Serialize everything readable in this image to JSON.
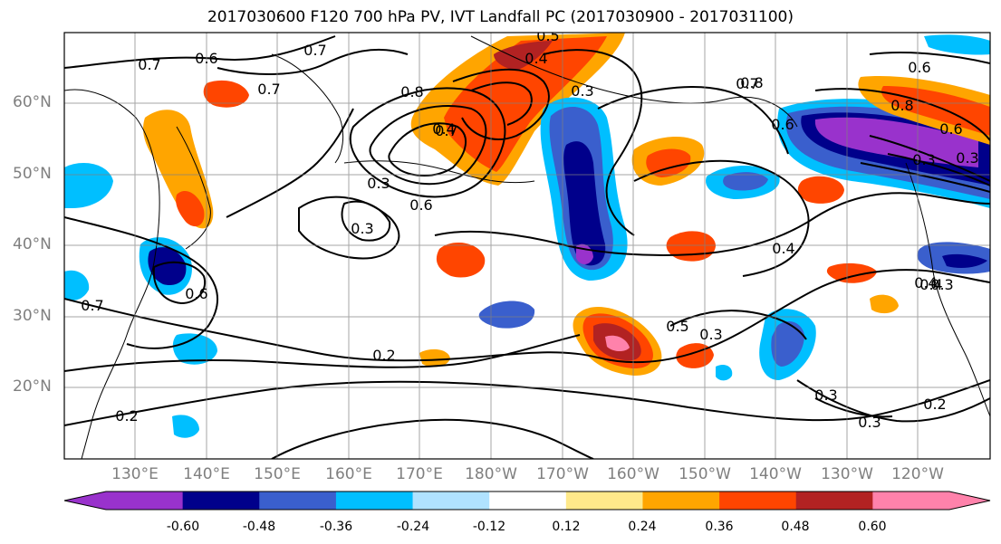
{
  "title": "2017030600 F120 700 hPa PV, IVT Landfall PC (2017030900 - 2017031100)",
  "latitude_labels": [
    "60°N",
    "50°N",
    "40°N",
    "30°N",
    "20°N"
  ],
  "longitude_labels": [
    "130°E",
    "140°E",
    "150°E",
    "160°E",
    "170°E",
    "180°W",
    "170°W",
    "160°W",
    "150°W",
    "140°W",
    "130°W",
    "120°W"
  ],
  "contour_labels": [
    "0.7",
    "0.6",
    "0.7",
    "0.7",
    "0.8",
    "0.7",
    "0.4",
    "0.3",
    "0.8",
    "0.7",
    "0.6",
    "0.5",
    "0.4",
    "0.3",
    "0.6",
    "0.6",
    "0.7",
    "0.8",
    "0.3",
    "0.6",
    "0.3",
    "0.4",
    "0.3",
    "0.6",
    "0.4",
    "0.2",
    "0.5",
    "0.3",
    "0.4",
    "0.3",
    "0.3",
    "0.2",
    "0.3",
    "0.2"
  ],
  "colorbar": {
    "colors": [
      "#9932cc",
      "#00008b",
      "#3a5fcd",
      "#00bfff",
      "#b0e2ff",
      "#ffffff",
      "#ffe98a",
      "#ffa500",
      "#ff4500",
      "#b22222",
      "#ff82ab"
    ],
    "tick_labels": [
      "-0.60",
      "-0.48",
      "-0.36",
      "-0.24",
      "-0.12",
      "0.12",
      "0.24",
      "0.36",
      "0.48",
      "0.60"
    ]
  }
}
